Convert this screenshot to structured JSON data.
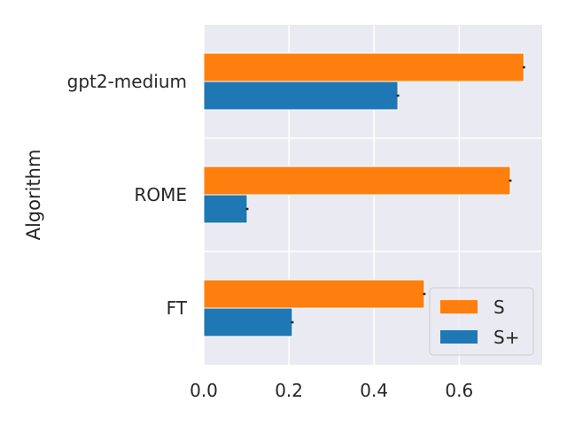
{
  "chart_data": {
    "type": "bar",
    "orientation": "horizontal",
    "categories": [
      "FT",
      "ROME",
      "gpt2-medium"
    ],
    "series": [
      {
        "name": "S",
        "values": [
          0.518,
          0.72,
          0.752
        ],
        "errors": [
          0.003,
          0.003,
          0.003
        ],
        "color": "#ff7f0e"
      },
      {
        "name": "S+",
        "values": [
          0.208,
          0.102,
          0.456
        ],
        "errors": [
          0.003,
          0.003,
          0.003
        ],
        "color": "#1f77b4"
      }
    ],
    "xlim": [
      0,
      0.795
    ],
    "xticks": [
      "0.0",
      "0.2",
      "0.4",
      "0.6"
    ],
    "xlabel": "",
    "ylabel": "Algorithm",
    "title": "",
    "grid": true,
    "legend_position": "lower-right",
    "colors": {
      "background": "#eaeaf2",
      "grid": "#ffffff",
      "text": "#262626",
      "errorbar": "#262626"
    }
  }
}
